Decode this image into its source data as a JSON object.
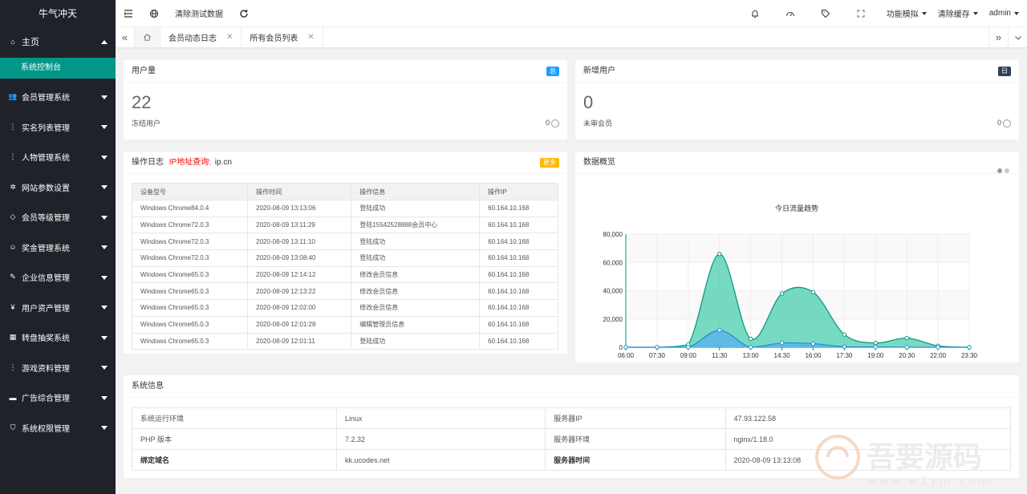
{
  "sidebar": {
    "logo": "牛气冲天",
    "home": "主页",
    "home_sub": "系统控制台",
    "items": [
      {
        "label": "会员管理系统",
        "icon": "users-icon"
      },
      {
        "label": "实名列表管理",
        "icon": "vertical-dots-icon"
      },
      {
        "label": "人物管理系统",
        "icon": "vertical-dots-icon"
      },
      {
        "label": "网站参数设置",
        "icon": "gear-icon"
      },
      {
        "label": "会员等级管理",
        "icon": "diamond-icon"
      },
      {
        "label": "奖金管理系统",
        "icon": "smile-icon"
      },
      {
        "label": "企业信息管理",
        "icon": "edit-icon"
      },
      {
        "label": "用户资产管理",
        "icon": "yen-icon"
      },
      {
        "label": "转盘抽奖系统",
        "icon": "calculator-icon"
      },
      {
        "label": "游戏资料管理",
        "icon": "vertical-dots-icon"
      },
      {
        "label": "广告综合管理",
        "icon": "chat-icon"
      },
      {
        "label": "系统权限管理",
        "icon": "shield-icon"
      }
    ]
  },
  "header": {
    "clear_test": "清除测试数据",
    "func_sim": "功能模拟",
    "clear_cache": "清除缓存",
    "user": "admin"
  },
  "tabs": [
    {
      "label": "会员动态日志"
    },
    {
      "label": "所有会员列表"
    }
  ],
  "user_card": {
    "title": "用户量",
    "badge": "总",
    "badge_color": "#1e9fff",
    "value": "22",
    "sub_label": "冻结用户",
    "sub_value": "0"
  },
  "new_card": {
    "title": "新增用户",
    "badge": "日",
    "badge_color": "#2f4056",
    "value": "0",
    "sub_label": "未审会员",
    "sub_value": "0"
  },
  "log": {
    "title": "操作日志",
    "ip_query": "IP地址查询:",
    "ip_site": "ip.cn",
    "badge": "更多",
    "badge_color": "#ffb800",
    "columns": [
      "设备型号",
      "操作时间",
      "操作信息",
      "操作IP"
    ],
    "rows": [
      [
        "Windows Chrome84.0.4",
        "2020-08-09 13:13:06",
        "登陆成功",
        "60.164.10.168"
      ],
      [
        "Windows Chrome72.0.3",
        "2020-08-09 13:11:29",
        "登陆15542528888会员中心",
        "60.164.10.168"
      ],
      [
        "Windows Chrome72.0.3",
        "2020-08-09 13:11:10",
        "登陆成功",
        "60.164.10.168"
      ],
      [
        "Windows Chrome72.0.3",
        "2020-08-09 13:08:40",
        "登陆成功",
        "60.164.10.168"
      ],
      [
        "Windows Chrome65.0.3",
        "2020-08-09 12:14:12",
        "修改会员信息",
        "60.164.10.168"
      ],
      [
        "Windows Chrome65.0.3",
        "2020-08-09 12:13:22",
        "修改会员信息",
        "60.164.10.168"
      ],
      [
        "Windows Chrome65.0.3",
        "2020-08-09 12:02:00",
        "修改会员信息",
        "60.164.10.168"
      ],
      [
        "Windows Chrome65.0.3",
        "2020-08-09 12:01:28",
        "编辑管理员信息",
        "60.164.10.168"
      ],
      [
        "Windows Chrome65.0.3",
        "2020-08-09 12:01:11",
        "登陆成功",
        "60.164.10.168"
      ]
    ]
  },
  "overview": {
    "title": "数据概览"
  },
  "chart_data": {
    "type": "area",
    "title": "今日流量趋势",
    "categories": [
      "06:00",
      "07:30",
      "09:00",
      "11:30",
      "13:00",
      "14:30",
      "16:00",
      "17:30",
      "19:00",
      "20:30",
      "22:00",
      "23:30"
    ],
    "series": [
      {
        "values": [
          0,
          0,
          2000,
          66000,
          6000,
          38000,
          39000,
          9000,
          3000,
          6500,
          1000,
          0
        ],
        "color": "#2ec7a0"
      },
      {
        "values": [
          0,
          0,
          0,
          12000,
          0,
          3000,
          2500,
          400,
          200,
          0,
          0,
          0
        ],
        "color": "#5ab1ef"
      }
    ],
    "ylim": [
      0,
      80000
    ],
    "yticks": [
      "0",
      "20,000",
      "40,000",
      "60,000",
      "80,000"
    ]
  },
  "sysinfo": {
    "title": "系统信息",
    "rows": [
      [
        "系统运行环境",
        "Linux",
        "服务器IP",
        "47.93.122.58"
      ],
      [
        "PHP 版本",
        "7.2.32",
        "服务器环境",
        "nginx/1.18.0"
      ],
      [
        "绑定域名",
        "kk.ucodes.net",
        "服务器时间",
        "2020-08-09 13:13:08"
      ]
    ]
  },
  "watermark": {
    "text": "吾要源码",
    "url": "www.w1ym.com"
  }
}
